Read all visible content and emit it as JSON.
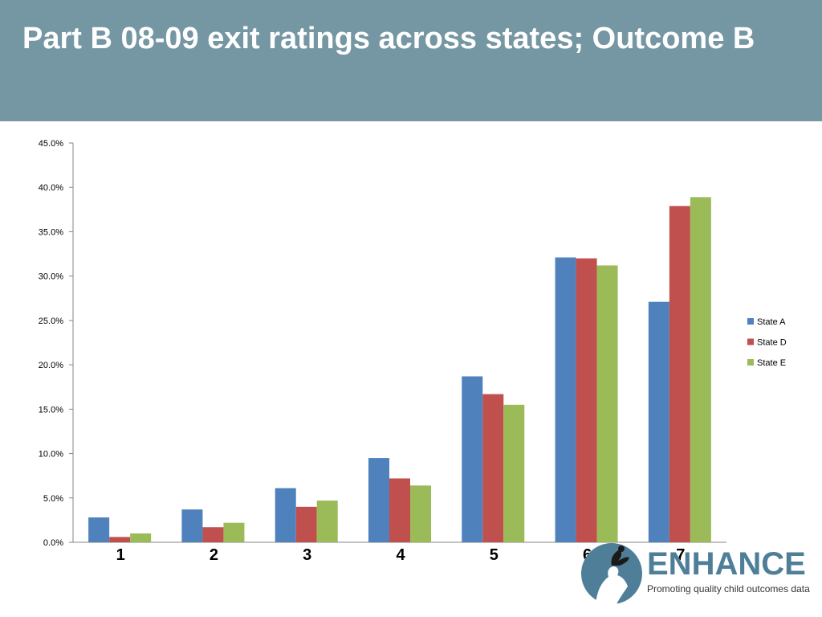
{
  "slide": {
    "title": "Part B 08-09 exit ratings across states; Outcome B"
  },
  "chart_data": {
    "type": "bar",
    "categories": [
      "1",
      "2",
      "3",
      "4",
      "5",
      "6",
      "7"
    ],
    "series": [
      {
        "name": "State A",
        "color": "#4f81bd",
        "values": [
          2.8,
          3.7,
          6.1,
          9.5,
          18.7,
          32.1,
          27.1
        ]
      },
      {
        "name": "State D",
        "color": "#c0504d",
        "values": [
          0.6,
          1.7,
          4.0,
          7.2,
          16.7,
          32.0,
          37.9
        ]
      },
      {
        "name": "State E",
        "color": "#9bbb59",
        "values": [
          1.0,
          2.2,
          4.7,
          6.4,
          15.5,
          31.2,
          38.9
        ]
      }
    ],
    "ylim": [
      0,
      45
    ],
    "yticks": [
      "0.0%",
      "5.0%",
      "10.0%",
      "15.0%",
      "20.0%",
      "25.0%",
      "30.0%",
      "35.0%",
      "40.0%",
      "45.0%"
    ],
    "legend_position": "right",
    "grid": false
  },
  "logo": {
    "word": "ENHANCE",
    "tagline": "Promoting quality child outcomes data"
  }
}
